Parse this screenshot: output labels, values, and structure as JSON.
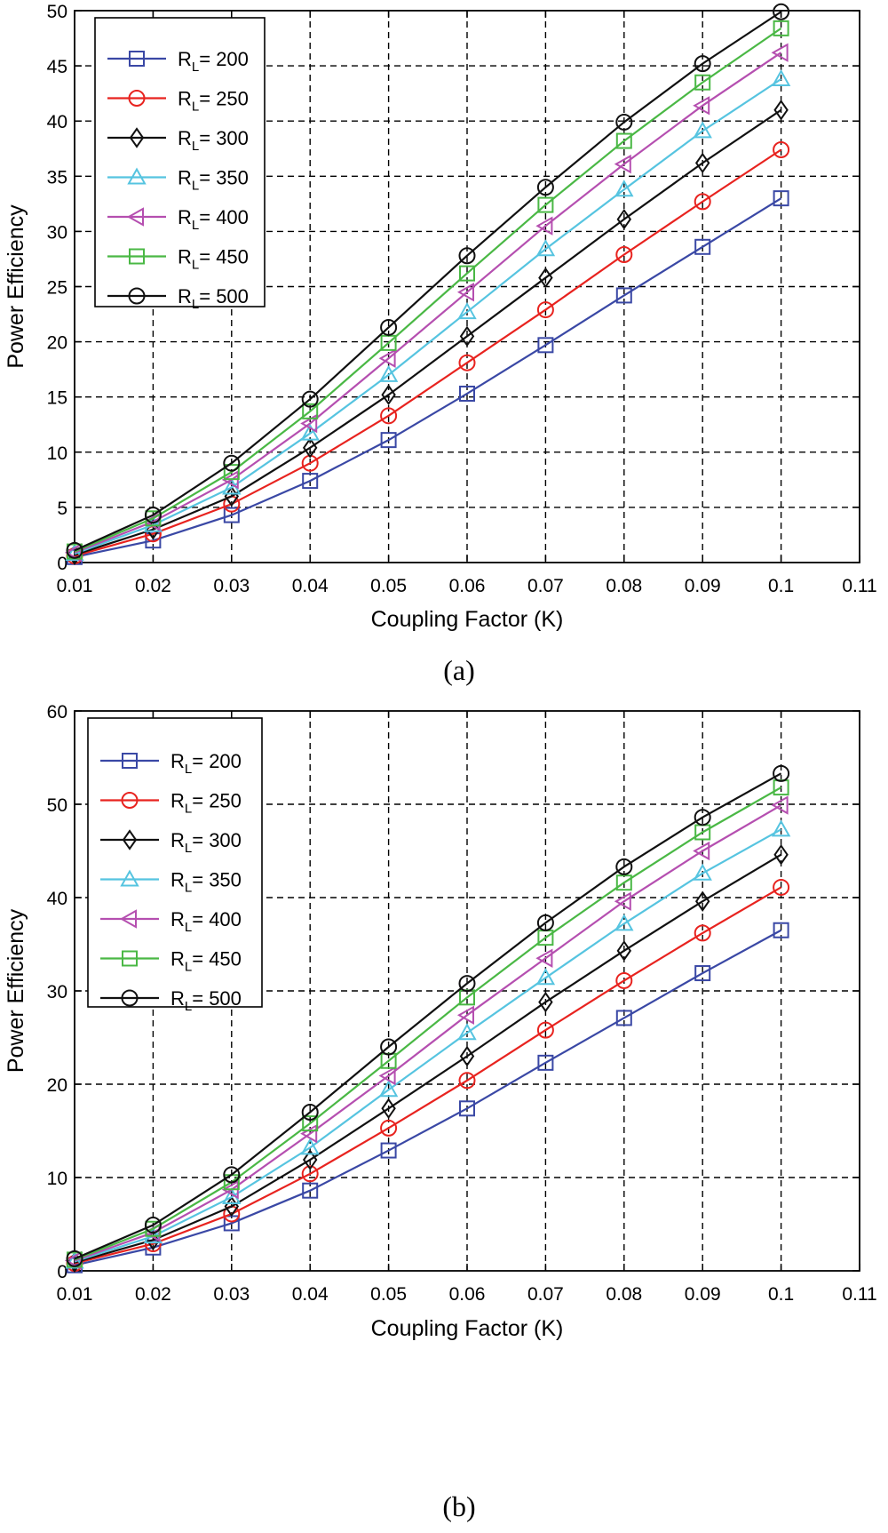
{
  "chart_data": [
    {
      "panel": "a",
      "type": "line",
      "caption": "(a)",
      "xlabel": "Coupling Factor (K)",
      "ylabel": "Power Efficiency",
      "xlim": [
        0.01,
        0.11
      ],
      "ylim": [
        0,
        50
      ],
      "xticks": [
        "0.01",
        "0.02",
        "0.03",
        "0.04",
        "0.05",
        "0.06",
        "0.07",
        "0.08",
        "0.09",
        "0.1",
        "0.11"
      ],
      "yticks": [
        "0",
        "5",
        "10",
        "15",
        "20",
        "25",
        "30",
        "35",
        "40",
        "45",
        "50"
      ],
      "grid": true,
      "legend_position": "top-left",
      "x": [
        0.01,
        0.02,
        0.03,
        0.04,
        0.05,
        0.06,
        0.07,
        0.08,
        0.09,
        0.1
      ],
      "series": [
        {
          "name": "R_L= 200",
          "rl": "200",
          "color": "#3a48a5",
          "marker": "square",
          "values": [
            0.5,
            2.0,
            4.3,
            7.4,
            11.1,
            15.3,
            19.7,
            24.2,
            28.6,
            33.0
          ]
        },
        {
          "name": "R_L= 250",
          "rl": "250",
          "color": "#e8231f",
          "marker": "circle",
          "values": [
            0.6,
            2.6,
            5.3,
            9.0,
            13.3,
            18.1,
            22.9,
            27.9,
            32.7,
            37.4
          ]
        },
        {
          "name": "R_L= 300",
          "rl": "300",
          "color": "#111111",
          "marker": "diamond",
          "values": [
            0.7,
            3.0,
            6.0,
            10.4,
            15.2,
            20.5,
            25.8,
            31.1,
            36.2,
            41.0
          ]
        },
        {
          "name": "R_L= 350",
          "rl": "350",
          "color": "#56c4e0",
          "marker": "triangle-up",
          "values": [
            0.8,
            3.4,
            6.8,
            11.7,
            17.0,
            22.7,
            28.4,
            33.8,
            39.1,
            43.8
          ]
        },
        {
          "name": "R_L= 400",
          "rl": "400",
          "color": "#b54fb0",
          "marker": "triangle-left",
          "values": [
            0.9,
            3.7,
            7.5,
            12.6,
            18.5,
            24.5,
            30.5,
            36.1,
            41.4,
            46.2
          ]
        },
        {
          "name": "R_L= 450",
          "rl": "450",
          "color": "#4ab845",
          "marker": "square",
          "values": [
            1.0,
            4.0,
            8.2,
            13.7,
            19.9,
            26.2,
            32.4,
            38.2,
            43.5,
            48.4
          ]
        },
        {
          "name": "R_L= 500",
          "rl": "500",
          "color": "#111111",
          "marker": "circle",
          "values": [
            1.1,
            4.3,
            9.0,
            14.8,
            21.3,
            27.8,
            34.0,
            39.9,
            45.2,
            49.9
          ]
        }
      ]
    },
    {
      "panel": "b",
      "type": "line",
      "caption": "(b)",
      "xlabel": "Coupling Factor (K)",
      "ylabel": "Power Efficiency",
      "xlim": [
        0.01,
        0.11
      ],
      "ylim": [
        0,
        60
      ],
      "xticks": [
        "0.01",
        "0.02",
        "0.03",
        "0.04",
        "0.05",
        "0.06",
        "0.07",
        "0.08",
        "0.09",
        "0.1",
        "0.11"
      ],
      "yticks": [
        "0",
        "10",
        "20",
        "30",
        "40",
        "50",
        "60"
      ],
      "grid": true,
      "legend_position": "top-left",
      "x": [
        0.01,
        0.02,
        0.03,
        0.04,
        0.05,
        0.06,
        0.07,
        0.08,
        0.09,
        0.1
      ],
      "series": [
        {
          "name": "R_L= 200",
          "rl": "200",
          "color": "#3a48a5",
          "marker": "square",
          "values": [
            0.6,
            2.5,
            5.1,
            8.6,
            12.9,
            17.4,
            22.3,
            27.1,
            31.9,
            36.5
          ]
        },
        {
          "name": "R_L= 250",
          "rl": "250",
          "color": "#e8231f",
          "marker": "circle",
          "values": [
            0.8,
            2.9,
            6.1,
            10.4,
            15.3,
            20.4,
            25.8,
            31.1,
            36.2,
            41.1
          ]
        },
        {
          "name": "R_L= 300",
          "rl": "300",
          "color": "#111111",
          "marker": "diamond",
          "values": [
            0.9,
            3.3,
            6.9,
            11.9,
            17.4,
            23.0,
            28.8,
            34.3,
            39.6,
            44.6
          ]
        },
        {
          "name": "R_L= 350",
          "rl": "350",
          "color": "#56c4e0",
          "marker": "triangle-up",
          "values": [
            1.0,
            3.7,
            7.9,
            13.2,
            19.4,
            25.5,
            31.4,
            37.2,
            42.6,
            47.3
          ]
        },
        {
          "name": "R_L= 400",
          "rl": "400",
          "color": "#b54fb0",
          "marker": "triangle-left",
          "values": [
            1.1,
            4.1,
            8.7,
            14.7,
            20.9,
            27.4,
            33.5,
            39.6,
            45.0,
            49.9
          ]
        },
        {
          "name": "R_L= 450",
          "rl": "450",
          "color": "#4ab845",
          "marker": "square",
          "values": [
            1.2,
            4.5,
            9.5,
            15.8,
            22.5,
            29.3,
            35.7,
            41.6,
            47.0,
            51.8
          ]
        },
        {
          "name": "R_L= 500",
          "rl": "500",
          "color": "#111111",
          "marker": "circle",
          "values": [
            1.3,
            4.9,
            10.3,
            17.0,
            24.0,
            30.8,
            37.3,
            43.3,
            48.6,
            53.3
          ]
        }
      ]
    }
  ]
}
